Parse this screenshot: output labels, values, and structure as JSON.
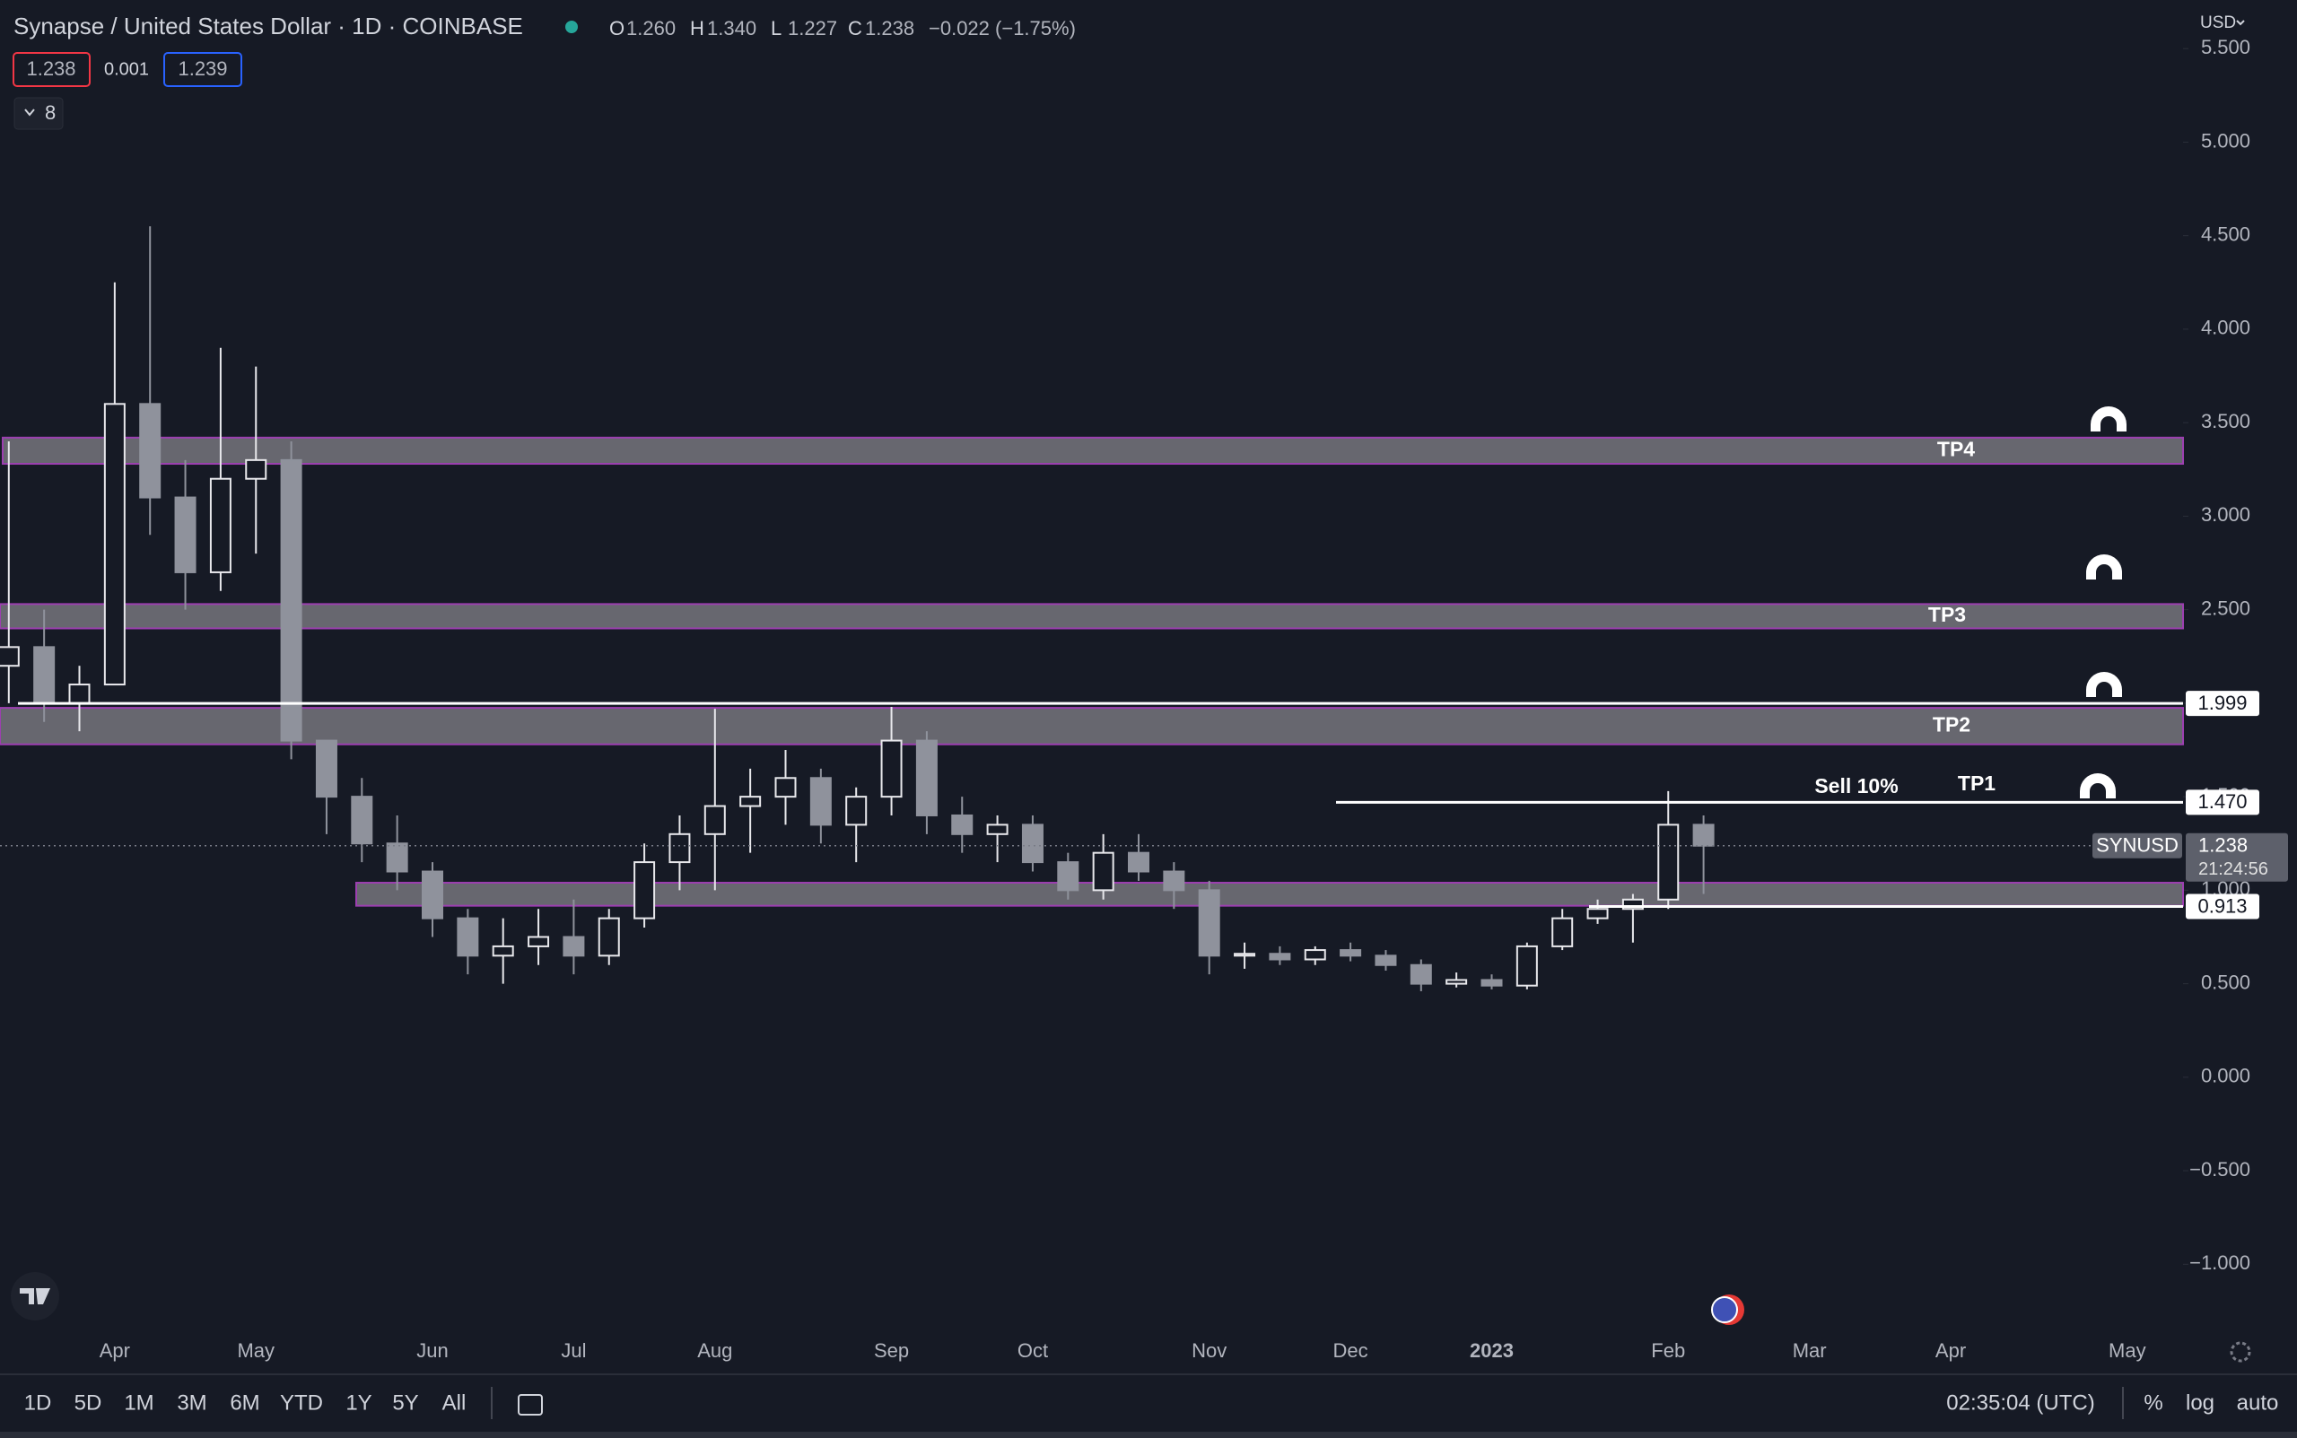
{
  "header": {
    "title": "Synapse / United States Dollar · 1D · COINBASE",
    "ohlc": [
      {
        "key": "O",
        "value": "1.260"
      },
      {
        "key": "H",
        "value": "1.340"
      },
      {
        "key": "L",
        "value": "1.227"
      },
      {
        "key": "C",
        "value": "1.238"
      }
    ],
    "change": "−0.022 (−1.75%)",
    "bid": "1.238",
    "spread": "0.001",
    "ask": "1.239",
    "indicators": "8",
    "currency": "USD"
  },
  "chart_data": {
    "type": "candlestick",
    "categories": [
      null,
      null,
      null,
      "Apr",
      null,
      null,
      null,
      "May",
      null,
      null,
      null,
      null,
      "Jun",
      null,
      null,
      null,
      "Jul",
      null,
      null,
      null,
      "Aug",
      null,
      null,
      null,
      null,
      "Sep",
      null,
      null,
      null,
      "Oct",
      null,
      null,
      null,
      null,
      "Nov",
      null,
      null,
      null,
      "Dec",
      null,
      null,
      null,
      "2023",
      null,
      null,
      null,
      null,
      "Feb",
      null,
      null,
      null,
      "Mar",
      null,
      null,
      null,
      "Apr",
      null,
      null,
      null,
      null,
      "May"
    ],
    "series": [
      {
        "name": "SYNUSD",
        "up_color": "#e8e8ec",
        "down_color": "#8f929c",
        "open": [
          2.2,
          2.3,
          2.0,
          2.1,
          3.6,
          3.1,
          2.7,
          3.2,
          3.3,
          1.8,
          1.5,
          1.25,
          1.1,
          0.85,
          0.65,
          0.7,
          0.75,
          0.65,
          0.85,
          1.15,
          1.3,
          1.45,
          1.5,
          1.6,
          1.35,
          1.5,
          1.8,
          1.4,
          1.3,
          1.35,
          1.15,
          1.0,
          1.2,
          1.1,
          1.0,
          0.65,
          0.66,
          0.63,
          0.68,
          0.65,
          0.6,
          0.5,
          0.52,
          0.49,
          0.7,
          0.85,
          0.9,
          0.95,
          1.35,
          null,
          null,
          null,
          null,
          null,
          null,
          null,
          null,
          null,
          null,
          null,
          null
        ],
        "high": [
          3.4,
          2.5,
          2.2,
          4.25,
          4.55,
          3.3,
          3.9,
          3.8,
          3.4,
          1.8,
          1.6,
          1.4,
          1.15,
          0.9,
          0.85,
          0.9,
          0.95,
          0.9,
          1.25,
          1.4,
          1.97,
          1.65,
          1.75,
          1.65,
          1.55,
          1.98,
          1.85,
          1.5,
          1.4,
          1.4,
          1.2,
          1.3,
          1.3,
          1.15,
          1.05,
          0.72,
          0.7,
          0.7,
          0.72,
          0.68,
          0.63,
          0.56,
          0.55,
          0.72,
          0.9,
          0.95,
          0.98,
          1.53,
          1.4,
          null,
          null,
          null,
          null,
          null,
          null,
          null,
          null,
          null,
          null,
          null,
          null
        ],
        "low": [
          2.0,
          1.9,
          1.85,
          2.1,
          2.9,
          2.5,
          2.6,
          2.8,
          1.7,
          1.3,
          1.15,
          1.0,
          0.75,
          0.55,
          0.5,
          0.6,
          0.55,
          0.6,
          0.8,
          1.0,
          1.0,
          1.2,
          1.35,
          1.25,
          1.15,
          1.4,
          1.3,
          1.2,
          1.15,
          1.1,
          0.95,
          0.95,
          1.05,
          0.9,
          0.55,
          0.58,
          0.6,
          0.6,
          0.62,
          0.57,
          0.46,
          0.48,
          0.47,
          0.47,
          0.68,
          0.82,
          0.72,
          0.9,
          0.98,
          null,
          null,
          null,
          null,
          null,
          null,
          null,
          null,
          null,
          null,
          null,
          null
        ],
        "close": [
          2.3,
          2.0,
          2.1,
          3.6,
          3.1,
          2.7,
          3.2,
          3.3,
          1.8,
          1.5,
          1.25,
          1.1,
          0.85,
          0.65,
          0.7,
          0.75,
          0.65,
          0.85,
          1.15,
          1.3,
          1.45,
          1.5,
          1.6,
          1.35,
          1.5,
          1.8,
          1.4,
          1.3,
          1.35,
          1.15,
          1.0,
          1.2,
          1.1,
          1.0,
          0.65,
          0.66,
          0.63,
          0.68,
          0.65,
          0.6,
          0.5,
          0.52,
          0.49,
          0.7,
          0.85,
          0.9,
          0.95,
          1.35,
          1.238,
          null,
          null,
          null,
          null,
          null,
          null,
          null,
          null,
          null,
          null,
          null,
          null
        ]
      }
    ],
    "ylim": [
      -1.387,
      5.76
    ],
    "yticks": [
      {
        "value": 5.5,
        "label": "5.500"
      },
      {
        "value": 5,
        "label": "5.000"
      },
      {
        "value": 4.5,
        "label": "4.500"
      },
      {
        "value": 4,
        "label": "4.000"
      },
      {
        "value": 3.5,
        "label": "3.500"
      },
      {
        "value": 3,
        "label": "3.000"
      },
      {
        "value": 2.5,
        "label": "2.500"
      },
      {
        "value": 2,
        "label": "2.000"
      },
      {
        "value": 1.5,
        "label": "1.500"
      },
      {
        "value": 1,
        "label": "1.000"
      },
      {
        "value": 0.5,
        "label": "0.500"
      },
      {
        "value": 0,
        "label": "0.000"
      },
      {
        "value": -0.5,
        "label": "−0.500"
      },
      {
        "value": -1,
        "label": "−1.000"
      }
    ],
    "zones": [
      {
        "name": "TP4",
        "range": [
          3.28,
          3.42
        ]
      },
      {
        "name": "TP3",
        "range": [
          2.4,
          2.53
        ]
      },
      {
        "name": "TP2",
        "range": [
          1.78,
          1.975
        ]
      },
      {
        "range": [
          0.917,
          1.04
        ]
      }
    ],
    "zone_color": "#75757d",
    "zone_border": "#9c3fb0",
    "levels": [
      1.999,
      {
        "value": 1.47,
        "label": "1.470"
      },
      0.913
    ],
    "level_color": "#ffffff",
    "annotations": [
      "Sell 10%",
      "TP1"
    ],
    "last_price": 1.238,
    "countdown": "21:24:56"
  },
  "toolbar": {
    "ranges": [
      "1D",
      "5D",
      "1M",
      "3M",
      "6M",
      "YTD",
      "1Y",
      "5Y",
      "All"
    ],
    "time": "02:35:04 (UTC)",
    "options": [
      "%",
      "log",
      "auto"
    ]
  }
}
